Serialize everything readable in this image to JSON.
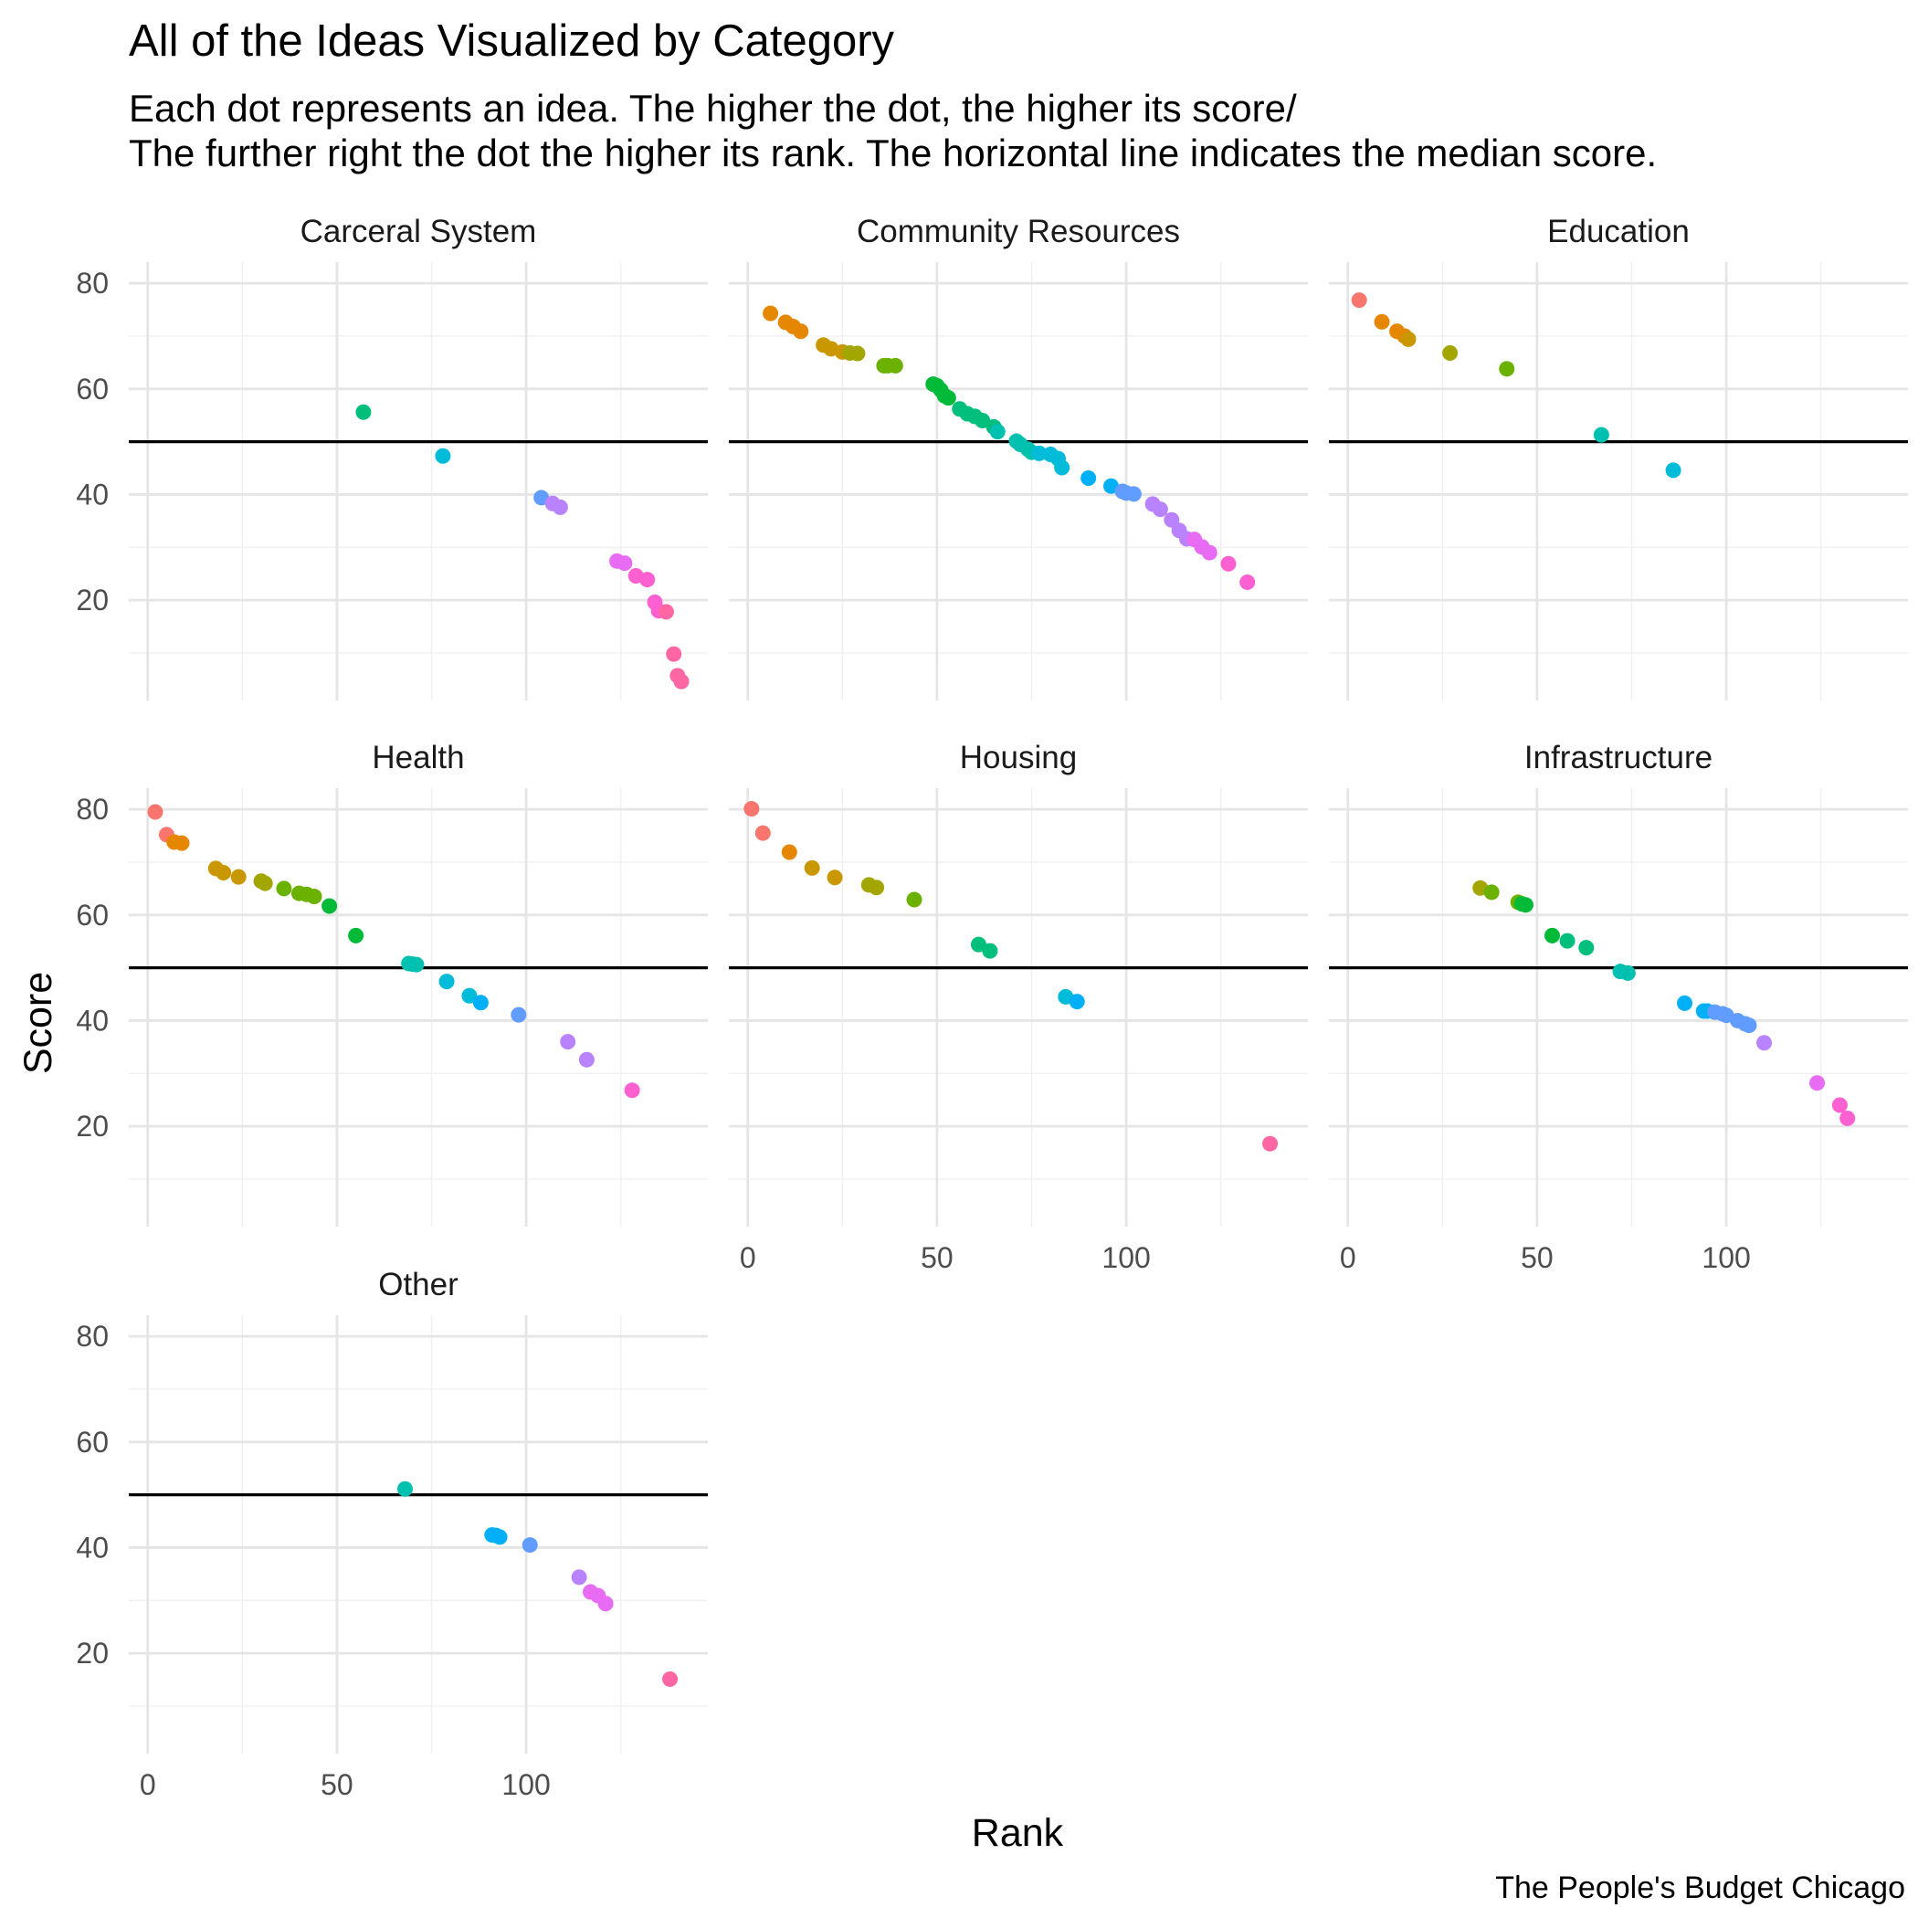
{
  "chart_data": {
    "type": "scatter",
    "title": "All of the Ideas Visualized by Category",
    "subtitle": [
      "Each dot represents an idea. The higher the dot, the higher its score/",
      "The further right the dot the higher its rank. The horizontal line indicates the median score."
    ],
    "xlabel": "Rank",
    "ylabel": "Score",
    "caption": "The People's Budget Chicago",
    "xlim": [
      -5,
      148
    ],
    "ylim": [
      1,
      84
    ],
    "x_ticks": [
      0,
      50,
      100
    ],
    "y_ticks": [
      20,
      40,
      60,
      80
    ],
    "median_score": 50,
    "grid": true,
    "legend": "none",
    "panels": [
      {
        "name": "Carceral System",
        "points": [
          {
            "x": 57,
            "y": 55.6
          },
          {
            "x": 78,
            "y": 47.3
          },
          {
            "x": 104,
            "y": 39.4
          },
          {
            "x": 107,
            "y": 38.3
          },
          {
            "x": 109,
            "y": 37.6
          },
          {
            "x": 124,
            "y": 27.4
          },
          {
            "x": 126,
            "y": 27.0
          },
          {
            "x": 129,
            "y": 24.6
          },
          {
            "x": 132,
            "y": 23.9
          },
          {
            "x": 134,
            "y": 19.6
          },
          {
            "x": 135,
            "y": 18.0
          },
          {
            "x": 137,
            "y": 17.8
          },
          {
            "x": 139,
            "y": 9.8
          },
          {
            "x": 140,
            "y": 5.7
          },
          {
            "x": 141,
            "y": 4.6
          }
        ]
      },
      {
        "name": "Community Resources",
        "points": [
          {
            "x": 6,
            "y": 74.3
          },
          {
            "x": 10,
            "y": 72.6
          },
          {
            "x": 12,
            "y": 71.8
          },
          {
            "x": 14,
            "y": 70.9
          },
          {
            "x": 20,
            "y": 68.3
          },
          {
            "x": 22,
            "y": 67.6
          },
          {
            "x": 25,
            "y": 67.0
          },
          {
            "x": 27,
            "y": 66.8
          },
          {
            "x": 29,
            "y": 66.7
          },
          {
            "x": 36,
            "y": 64.4
          },
          {
            "x": 37,
            "y": 64.4
          },
          {
            "x": 39,
            "y": 64.4
          },
          {
            "x": 49,
            "y": 60.9
          },
          {
            "x": 50,
            "y": 60.6
          },
          {
            "x": 51,
            "y": 59.8
          },
          {
            "x": 52,
            "y": 58.7
          },
          {
            "x": 53,
            "y": 58.3
          },
          {
            "x": 56,
            "y": 56.2
          },
          {
            "x": 58,
            "y": 55.3
          },
          {
            "x": 60,
            "y": 54.8
          },
          {
            "x": 62,
            "y": 54.0
          },
          {
            "x": 65,
            "y": 52.8
          },
          {
            "x": 66,
            "y": 51.9
          },
          {
            "x": 71,
            "y": 50.1
          },
          {
            "x": 72,
            "y": 49.5
          },
          {
            "x": 74,
            "y": 48.6
          },
          {
            "x": 75,
            "y": 48.0
          },
          {
            "x": 77,
            "y": 47.8
          },
          {
            "x": 80,
            "y": 47.6
          },
          {
            "x": 82,
            "y": 46.8
          },
          {
            "x": 83,
            "y": 45.1
          },
          {
            "x": 90,
            "y": 43.1
          },
          {
            "x": 96,
            "y": 41.6
          },
          {
            "x": 99,
            "y": 40.6
          },
          {
            "x": 100,
            "y": 40.3
          },
          {
            "x": 102,
            "y": 40.1
          },
          {
            "x": 107,
            "y": 38.2
          },
          {
            "x": 109,
            "y": 37.2
          },
          {
            "x": 112,
            "y": 35.2
          },
          {
            "x": 114,
            "y": 33.2
          },
          {
            "x": 116,
            "y": 31.6
          },
          {
            "x": 118,
            "y": 31.5
          },
          {
            "x": 120,
            "y": 30.1
          },
          {
            "x": 122,
            "y": 29.0
          },
          {
            "x": 127,
            "y": 26.9
          },
          {
            "x": 132,
            "y": 23.4
          }
        ]
      },
      {
        "name": "Education",
        "points": [
          {
            "x": 3,
            "y": 76.8
          },
          {
            "x": 9,
            "y": 72.7
          },
          {
            "x": 13,
            "y": 70.9
          },
          {
            "x": 15,
            "y": 70.0
          },
          {
            "x": 16,
            "y": 69.4
          },
          {
            "x": 27,
            "y": 66.8
          },
          {
            "x": 42,
            "y": 63.8
          },
          {
            "x": 67,
            "y": 51.3
          },
          {
            "x": 86,
            "y": 44.6
          }
        ]
      },
      {
        "name": "Health",
        "points": [
          {
            "x": 2,
            "y": 79.5
          },
          {
            "x": 5,
            "y": 75.2
          },
          {
            "x": 7,
            "y": 73.8
          },
          {
            "x": 9,
            "y": 73.6
          },
          {
            "x": 18,
            "y": 68.8
          },
          {
            "x": 20,
            "y": 68.0
          },
          {
            "x": 24,
            "y": 67.2
          },
          {
            "x": 30,
            "y": 66.4
          },
          {
            "x": 31,
            "y": 66.0
          },
          {
            "x": 36,
            "y": 65.0
          },
          {
            "x": 40,
            "y": 64.1
          },
          {
            "x": 42,
            "y": 63.9
          },
          {
            "x": 44,
            "y": 63.5
          },
          {
            "x": 48,
            "y": 61.7
          },
          {
            "x": 55,
            "y": 56.1
          },
          {
            "x": 69,
            "y": 50.8
          },
          {
            "x": 70,
            "y": 50.7
          },
          {
            "x": 71,
            "y": 50.6
          },
          {
            "x": 79,
            "y": 47.4
          },
          {
            "x": 85,
            "y": 44.7
          },
          {
            "x": 88,
            "y": 43.4
          },
          {
            "x": 98,
            "y": 41.1
          },
          {
            "x": 111,
            "y": 36.0
          },
          {
            "x": 116,
            "y": 32.6
          },
          {
            "x": 128,
            "y": 26.8
          }
        ]
      },
      {
        "name": "Housing",
        "points": [
          {
            "x": 1,
            "y": 80.1
          },
          {
            "x": 4,
            "y": 75.5
          },
          {
            "x": 11,
            "y": 71.9
          },
          {
            "x": 17,
            "y": 68.9
          },
          {
            "x": 23,
            "y": 67.1
          },
          {
            "x": 32,
            "y": 65.7
          },
          {
            "x": 34,
            "y": 65.2
          },
          {
            "x": 44,
            "y": 62.9
          },
          {
            "x": 61,
            "y": 54.4
          },
          {
            "x": 64,
            "y": 53.2
          },
          {
            "x": 84,
            "y": 44.5
          },
          {
            "x": 87,
            "y": 43.6
          },
          {
            "x": 138,
            "y": 16.7
          }
        ]
      },
      {
        "name": "Infrastructure",
        "points": [
          {
            "x": 35,
            "y": 65.1
          },
          {
            "x": 38,
            "y": 64.3
          },
          {
            "x": 45,
            "y": 62.4
          },
          {
            "x": 46,
            "y": 62.1
          },
          {
            "x": 47,
            "y": 61.9
          },
          {
            "x": 54,
            "y": 56.1
          },
          {
            "x": 58,
            "y": 55.1
          },
          {
            "x": 63,
            "y": 53.8
          },
          {
            "x": 72,
            "y": 49.3
          },
          {
            "x": 74,
            "y": 49.0
          },
          {
            "x": 89,
            "y": 43.3
          },
          {
            "x": 94,
            "y": 41.8
          },
          {
            "x": 95,
            "y": 41.8
          },
          {
            "x": 97,
            "y": 41.6
          },
          {
            "x": 99,
            "y": 41.3
          },
          {
            "x": 100,
            "y": 41.0
          },
          {
            "x": 103,
            "y": 40.0
          },
          {
            "x": 105,
            "y": 39.4
          },
          {
            "x": 106,
            "y": 39.1
          },
          {
            "x": 110,
            "y": 35.8
          },
          {
            "x": 124,
            "y": 28.2
          },
          {
            "x": 130,
            "y": 24.0
          },
          {
            "x": 132,
            "y": 21.5
          }
        ]
      },
      {
        "name": "Other",
        "points": [
          {
            "x": 68,
            "y": 51.1
          },
          {
            "x": 91,
            "y": 42.4
          },
          {
            "x": 92,
            "y": 42.3
          },
          {
            "x": 93,
            "y": 42.0
          },
          {
            "x": 101,
            "y": 40.5
          },
          {
            "x": 114,
            "y": 34.4
          },
          {
            "x": 117,
            "y": 31.6
          },
          {
            "x": 119,
            "y": 30.9
          },
          {
            "x": 121,
            "y": 29.4
          },
          {
            "x": 138,
            "y": 15.1
          }
        ]
      }
    ]
  }
}
